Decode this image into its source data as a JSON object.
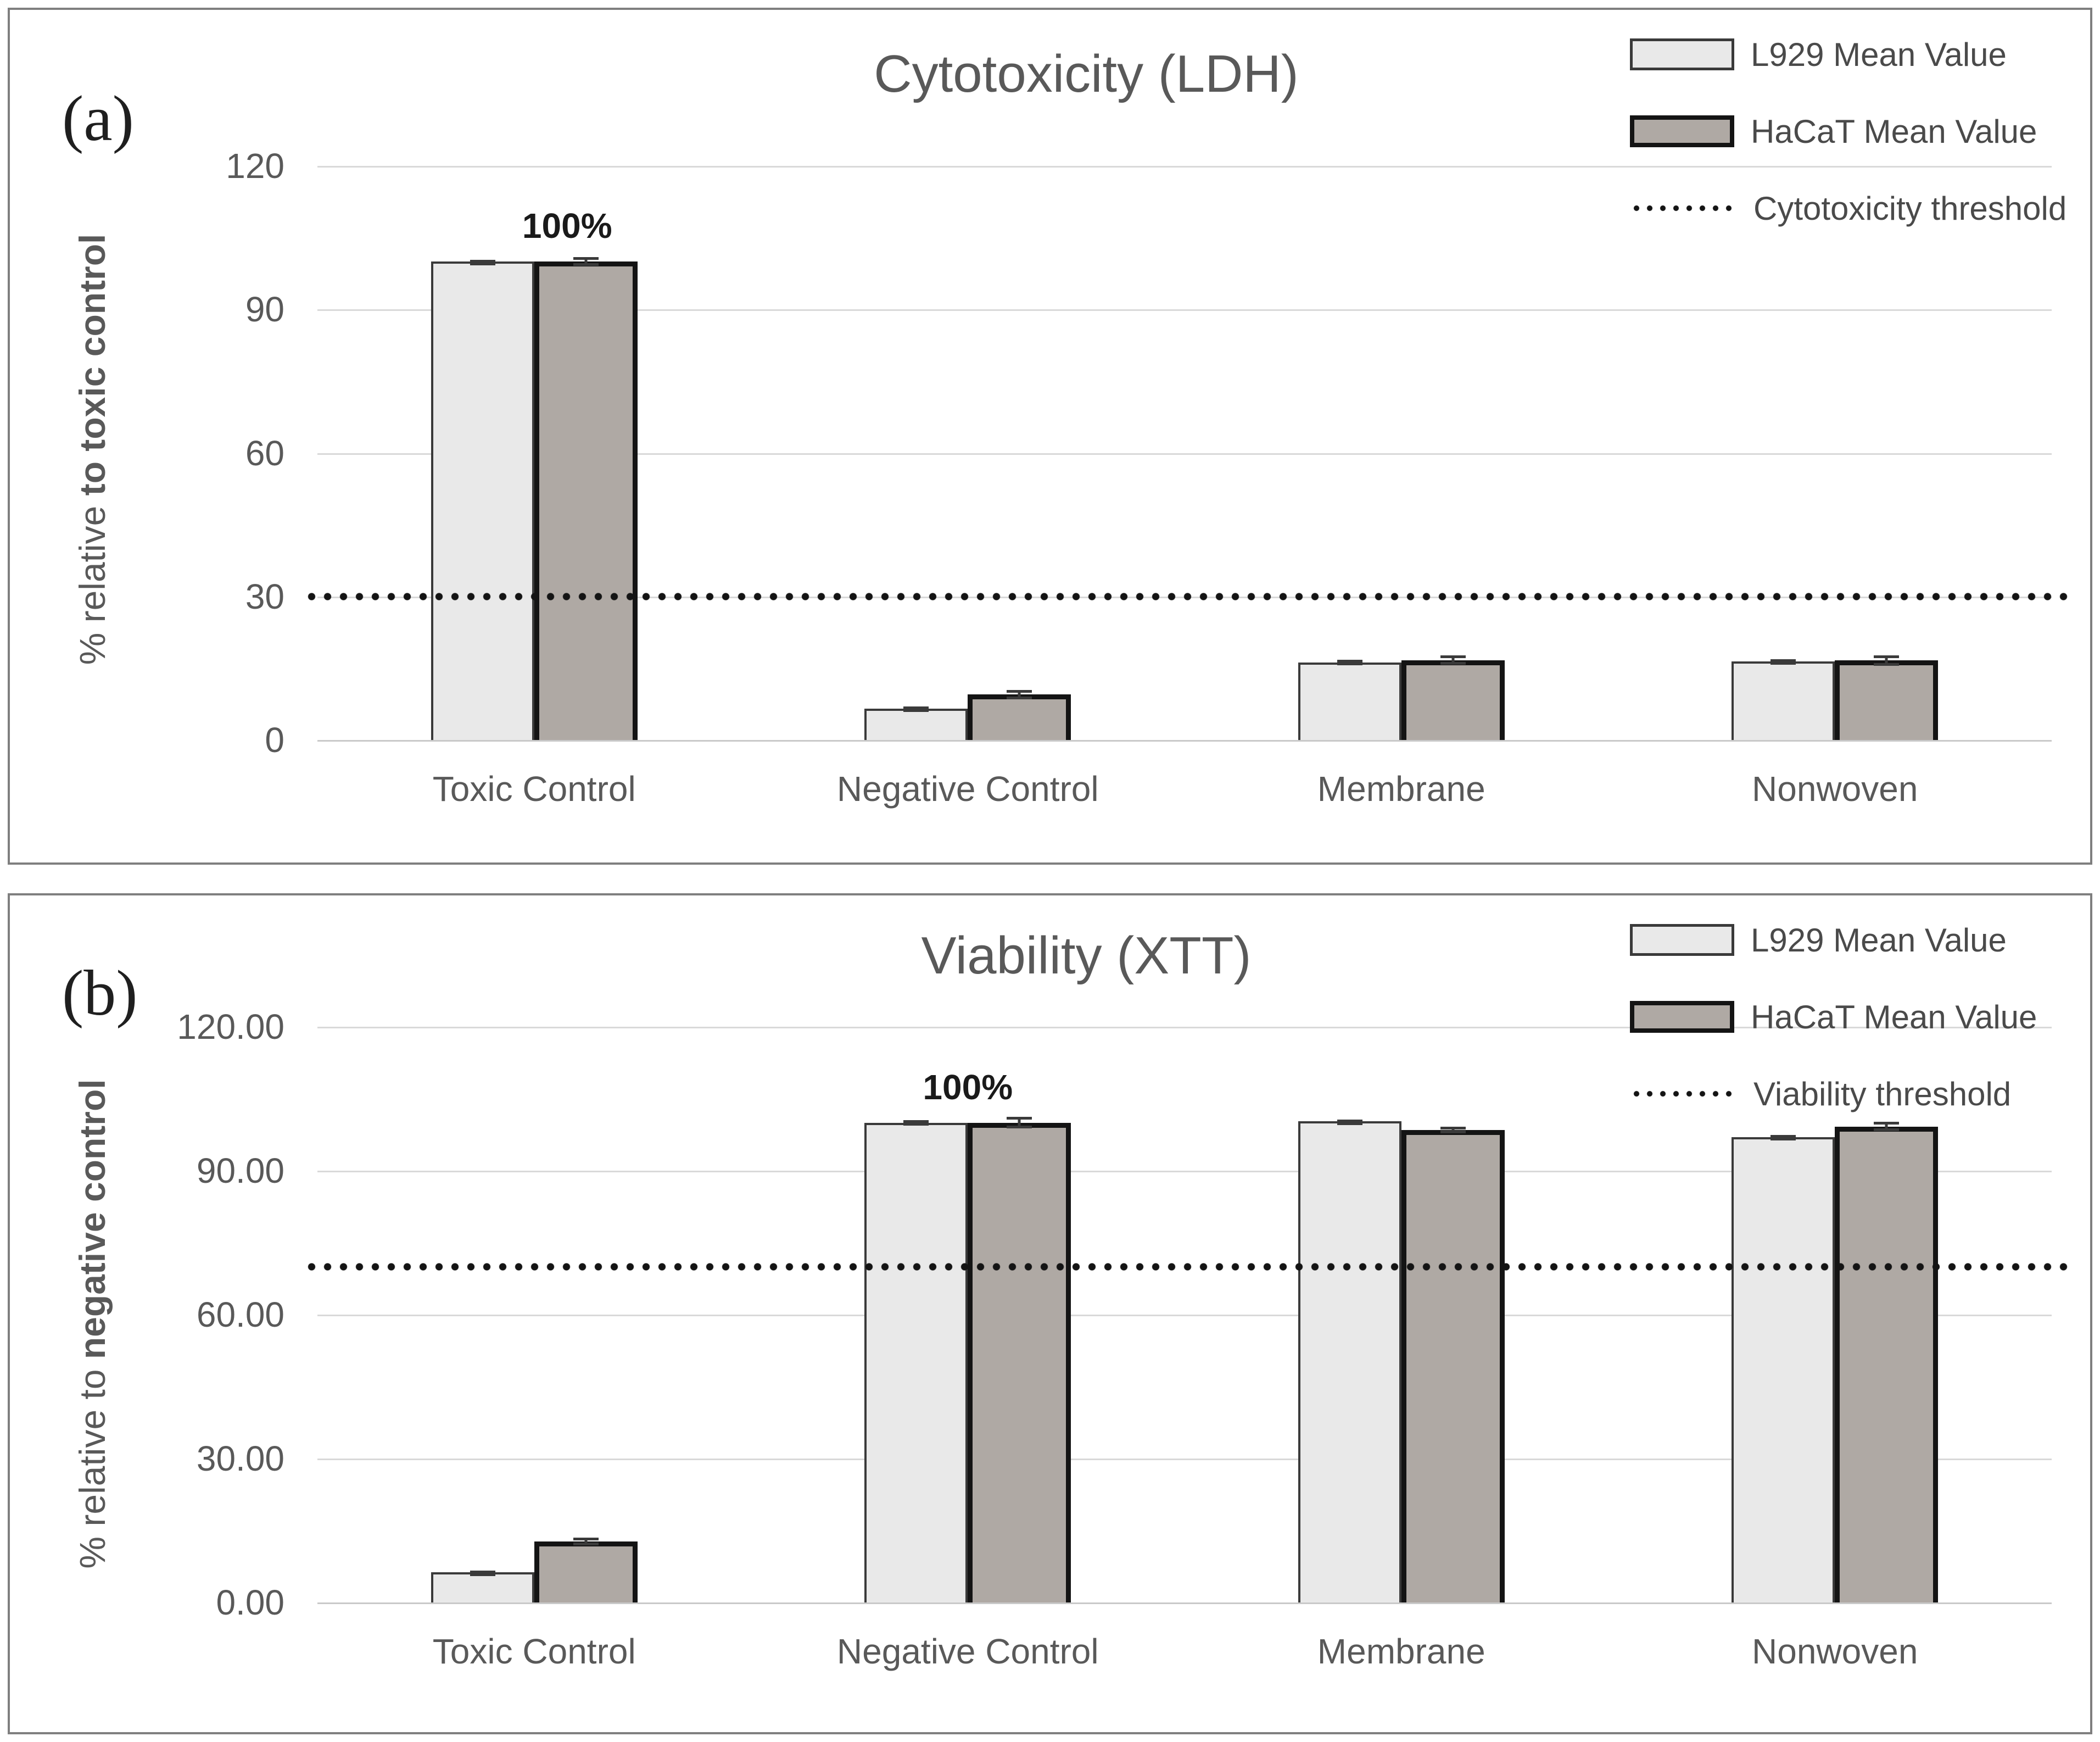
{
  "colors": {
    "l929_fill": "#e9e9e9",
    "l929_border": "#3a3a3a",
    "hacat_fill": "#afa9a4",
    "hacat_border": "#141414",
    "gridline": "#d9d9d9",
    "text_gray": "#595959",
    "threshold_dots": "#141414",
    "panel_border": "#7f7f7f"
  },
  "chart_data": [
    {
      "type": "bar",
      "panel_label": "(a)",
      "title": "Cytotoxicity (LDH)",
      "ylabel_normal": "% relative ",
      "ylabel_bold": "to toxic control",
      "ylim": [
        0,
        120
      ],
      "grid": true,
      "legend_position": "top-right",
      "yticks": [
        120,
        90,
        60,
        30,
        0
      ],
      "ytick_labels": [
        "120",
        "90",
        "60",
        "30",
        "0"
      ],
      "categories": [
        "Toxic Control",
        "Negative Control",
        "Membrane",
        "Nonwoven"
      ],
      "series": [
        {
          "name": "L929 Mean Value",
          "values": [
            100,
            6.5,
            16.2,
            16.4
          ],
          "errors": [
            0.4,
            0.5,
            0.6,
            0.5
          ]
        },
        {
          "name": "HaCaT Mean Value",
          "values": [
            100,
            9.5,
            16.7,
            16.6
          ],
          "errors": [
            0.9,
            1.0,
            1.0,
            1.1
          ]
        }
      ],
      "threshold": {
        "label": "Cytotoxicity threshold",
        "value": 30
      },
      "annotation": {
        "text": "100%",
        "category": "Toxic Control",
        "category_index": 0
      }
    },
    {
      "type": "bar",
      "panel_label": "(b)",
      "title": "Viability (XTT)",
      "ylabel_normal": "% relative to ",
      "ylabel_bold": "negative control",
      "ylim": [
        0,
        120
      ],
      "grid": true,
      "legend_position": "top-right",
      "yticks": [
        120,
        90,
        60,
        30,
        0
      ],
      "ytick_labels": [
        "120.00",
        "90.00",
        "60.00",
        "30.00",
        "0.00"
      ],
      "categories": [
        "Toxic Control",
        "Negative Control",
        "Membrane",
        "Nonwoven"
      ],
      "series": [
        {
          "name": "L929 Mean Value",
          "values": [
            6.3,
            100,
            100.3,
            97.0
          ],
          "errors": [
            0.3,
            0.5,
            0.4,
            0.5
          ]
        },
        {
          "name": "HaCaT Mean Value",
          "values": [
            12.7,
            100,
            98.5,
            99.2
          ],
          "errors": [
            0.8,
            1.2,
            0.7,
            1.0
          ]
        }
      ],
      "threshold": {
        "label": "Viability threshold",
        "value": 70
      },
      "annotation": {
        "text": "100%",
        "category": "Negative Control",
        "category_index": 1
      }
    }
  ]
}
